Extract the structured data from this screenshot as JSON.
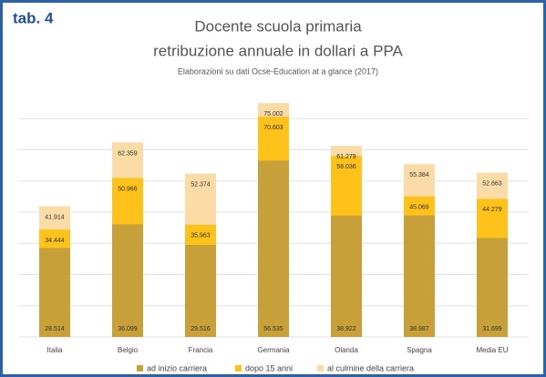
{
  "chart_data": {
    "type": "bar",
    "tag": "tab. 4",
    "title": "Docente scuola primaria",
    "title_line2": "retribuzione annuale in dollari a PPA",
    "subtitle": "Elaborazioni su dati Ocse-Education at a glance (2017)",
    "categories": [
      "Italia",
      "Belgio",
      "Francia",
      "Germania",
      "Olanda",
      "Spagna",
      "Media EU"
    ],
    "series": [
      {
        "name": "ad inizio carriera",
        "color": "#c8a03a",
        "values": [
          28514,
          36099,
          29516,
          56535,
          38922,
          38987,
          31699
        ],
        "value_labels": [
          "28.514",
          "36.099",
          "29.516",
          "56.535",
          "38.922",
          "38.987",
          "31.699"
        ]
      },
      {
        "name": "dopo 15 anni",
        "color": "#ffc21a",
        "values": [
          34444,
          50966,
          35963,
          70603,
          58036,
          45069,
          44279
        ],
        "value_labels": [
          "34.444",
          "50.966",
          "35.963",
          "70.603",
          "58.036",
          "45.069",
          "44.279"
        ]
      },
      {
        "name": "al culmine della carriera",
        "color": "#fbdca6",
        "values": [
          41914,
          62359,
          52374,
          75002,
          61279,
          55384,
          52663
        ],
        "value_labels": [
          "41.914",
          "62.359",
          "52.374",
          "75.002",
          "61.279",
          "55.384",
          "52.663"
        ]
      }
    ],
    "ylim": [
      0,
      80000
    ],
    "yticks": [
      0,
      10000,
      20000,
      30000,
      40000,
      50000,
      60000,
      70000
    ],
    "grid": true
  }
}
